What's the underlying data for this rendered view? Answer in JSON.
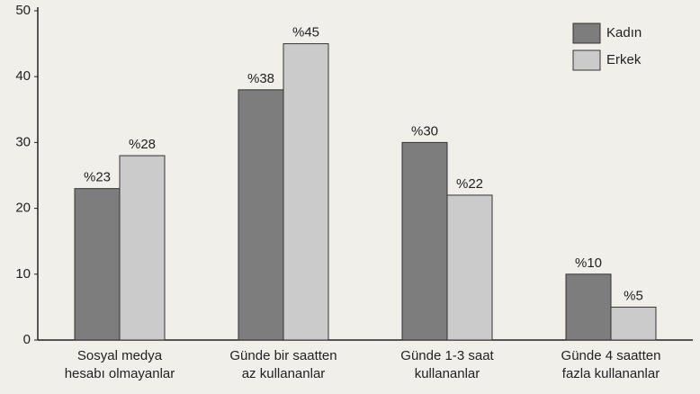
{
  "chart_data": {
    "type": "bar",
    "categories": [
      "Sosyal medya\nhesabı olmayanlar",
      "Günde bir saatten\naz kullananlar",
      "Günde 1-3 saat\nkullananlar",
      "Günde 4 saatten\nfazla kullananlar"
    ],
    "series": [
      {
        "name": "Kadın",
        "color": "#7d7d7d",
        "values": [
          23,
          38,
          30,
          10
        ],
        "value_labels": [
          "%23",
          "%38",
          "%30",
          "%10"
        ]
      },
      {
        "name": "Erkek",
        "color": "#cbcbcb",
        "values": [
          28,
          45,
          22,
          5
        ],
        "value_labels": [
          "%28",
          "%45",
          "%22",
          "%5"
        ]
      }
    ],
    "ylim": [
      0,
      50
    ],
    "yticks": [
      0,
      10,
      20,
      30,
      40,
      50
    ],
    "grid": false,
    "legend": "top-right"
  }
}
